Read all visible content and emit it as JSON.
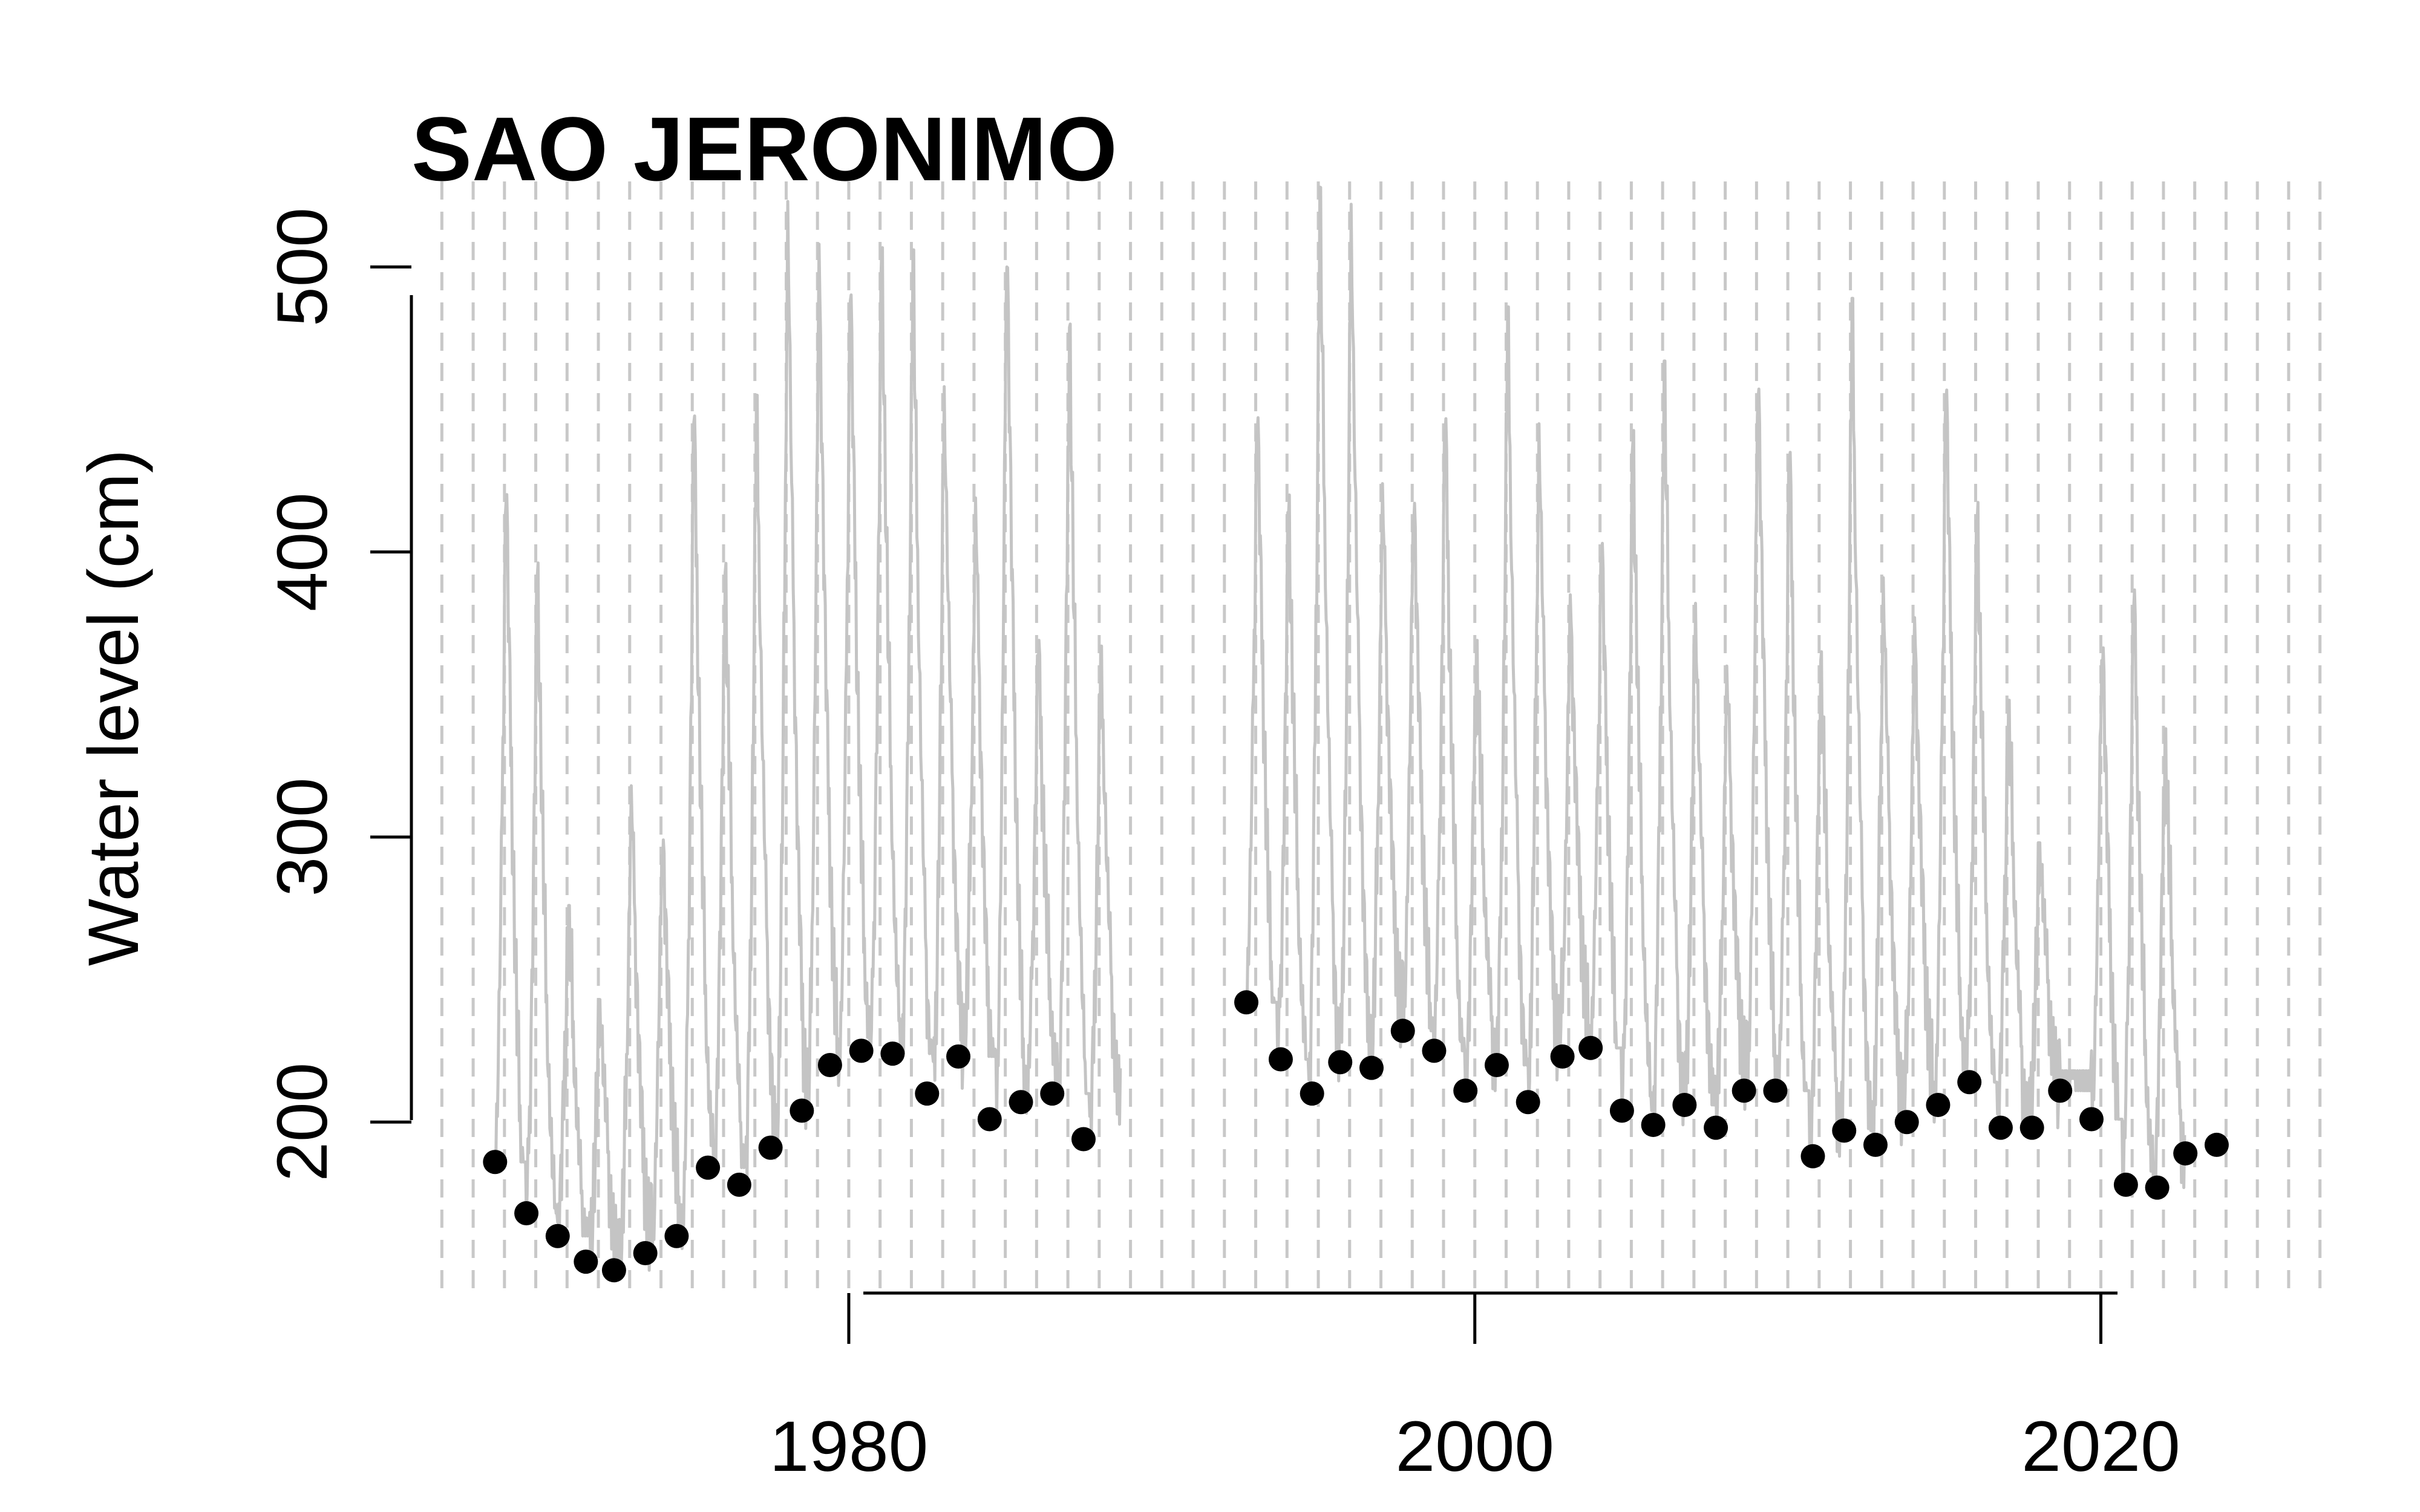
{
  "chart_data": {
    "type": "scatter",
    "title": "SAO JERONIMO",
    "xlabel": "",
    "ylabel": "Water level (cm)",
    "xlim": [
      1966.8,
      2027.2
    ],
    "ylim": [
      140,
      530
    ],
    "x_ticks": [
      1980,
      2000,
      2020
    ],
    "x_tick_labels": [
      "1980",
      "2000",
      "2020"
    ],
    "y_ticks": [
      200,
      300,
      400,
      500
    ],
    "y_tick_labels": [
      "200",
      "300",
      "400",
      "500"
    ],
    "grid": {
      "vertical": true,
      "style": "dashed",
      "years_from": 1967,
      "years_to": 2027
    },
    "series": [
      {
        "kind": "line",
        "color": "#c4c4c4",
        "segments": [
          {
            "start_year": 1968.7,
            "annual_max": [
              430,
              398,
              276,
              243,
              318,
              304,
              455,
              396,
              455,
              523,
              508,
              501,
              512,
              506,
              458,
              419,
              516,
              369,
              482,
              367
            ],
            "annual_min": [
              186,
              168,
              160,
              151,
              148,
              154,
              160,
              184,
              178,
              191,
              204,
              220,
              225,
              224,
              210,
              223,
              201,
              207,
              210,
              194
            ]
          },
          {
            "start_year": 1992.7,
            "annual_max": [
              455,
              420,
              528,
              522,
              424,
              426,
              452,
              369,
              486,
              445,
              385,
              409,
              445,
              467,
              382,
              360,
              470,
              441,
              365,
              489,
              391,
              377,
              466,
              418,
              348,
              298,
              218,
              375,
              390,
              338
            ],
            "annual_min": [
              242,
              222,
              210,
              221,
              219,
              232,
              225,
              211,
              220,
              207,
              223,
              226,
              204,
              199,
              206,
              198,
              211,
              211,
              188,
              197,
              192,
              200,
              206,
              214,
              198,
              198,
              211,
              201,
              178,
              177
            ]
          }
        ]
      },
      {
        "kind": "points",
        "name": "",
        "color": "#000000",
        "x": [
          1968.7,
          1969.7,
          1970.7,
          1971.6,
          1972.5,
          1973.5,
          1974.5,
          1975.5,
          1976.5,
          1977.5,
          1978.5,
          1979.4,
          1980.4,
          1981.4,
          1982.5,
          1983.5,
          1984.5,
          1985.5,
          1986.5,
          1987.5,
          1992.7,
          1993.8,
          1994.8,
          1995.7,
          1996.7,
          1997.7,
          1998.7,
          1999.7,
          2000.7,
          2001.7,
          2002.8,
          2003.7,
          2004.7,
          2005.7,
          2006.7,
          2007.7,
          2008.6,
          2009.6,
          2010.8,
          2011.8,
          2012.8,
          2013.8,
          2014.8,
          2015.8,
          2016.8,
          2017.8,
          2018.7,
          2019.7,
          2020.8,
          2021.8,
          2022.7,
          2023.7
        ],
        "y": [
          186,
          168,
          160,
          151,
          148,
          154,
          160,
          184,
          178,
          191,
          204,
          220,
          225,
          224,
          210,
          223,
          201,
          207,
          210,
          194,
          242,
          222,
          210,
          221,
          219,
          232,
          225,
          211,
          220,
          207,
          223,
          226,
          204,
          199,
          206,
          198,
          211,
          211,
          188,
          197,
          192,
          200,
          206,
          214,
          198,
          198,
          211,
          201,
          178,
          177,
          189,
          192
        ]
      }
    ]
  }
}
